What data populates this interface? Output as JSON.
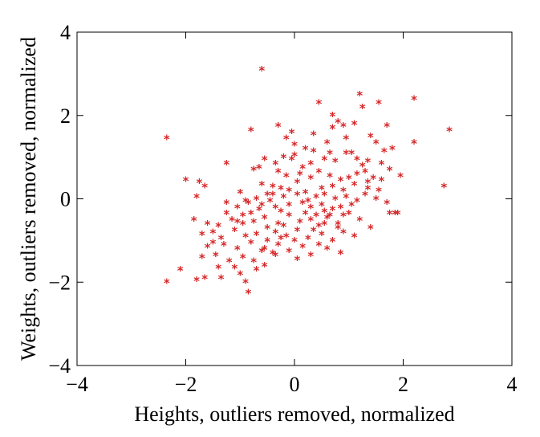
{
  "chart_data": {
    "type": "scatter",
    "title": "",
    "xlabel": "Heights, outliers removed, normalized",
    "ylabel": "Weights, outliers removed, normalized",
    "xlim": [
      -4,
      4
    ],
    "ylim": [
      -4,
      4
    ],
    "x_ticks": [
      -4,
      -2,
      0,
      2,
      4
    ],
    "y_ticks": [
      -4,
      -2,
      0,
      2,
      4
    ],
    "x_tick_labels": [
      "−4",
      "−2",
      "0",
      "2",
      "4"
    ],
    "y_tick_labels": [
      "−4",
      "−2",
      "0",
      "2",
      "4"
    ],
    "grid": false,
    "marker": "*",
    "marker_color": "#d62728",
    "series": [
      {
        "points": [
          [
            -0.6,
            3.15
          ],
          [
            1.2,
            2.55
          ],
          [
            2.2,
            2.45
          ],
          [
            1.55,
            2.35
          ],
          [
            1.25,
            2.25
          ],
          [
            0.45,
            2.35
          ],
          [
            0.7,
            2.05
          ],
          [
            0.8,
            1.9
          ],
          [
            0.7,
            1.75
          ],
          [
            0.9,
            1.8
          ],
          [
            1.1,
            1.85
          ],
          [
            1.7,
            1.8
          ],
          [
            2.85,
            1.7
          ],
          [
            -2.35,
            1.5
          ],
          [
            -0.8,
            1.7
          ],
          [
            -0.3,
            1.8
          ],
          [
            -0.05,
            1.65
          ],
          [
            0.35,
            1.6
          ],
          [
            1.4,
            1.55
          ],
          [
            1.5,
            1.4
          ],
          [
            2.2,
            1.4
          ],
          [
            -0.15,
            1.5
          ],
          [
            0.0,
            1.35
          ],
          [
            0.6,
            1.4
          ],
          [
            0.2,
            1.25
          ],
          [
            0.95,
            1.15
          ],
          [
            1.05,
            1.15
          ],
          [
            1.65,
            1.2
          ],
          [
            1.8,
            1.25
          ],
          [
            -1.25,
            0.9
          ],
          [
            -0.55,
            1.0
          ],
          [
            -0.2,
            1.05
          ],
          [
            -0.05,
            1.0
          ],
          [
            0.0,
            1.1
          ],
          [
            0.3,
            0.9
          ],
          [
            0.55,
            1.0
          ],
          [
            0.75,
            0.95
          ],
          [
            1.35,
            0.95
          ],
          [
            1.6,
            0.9
          ],
          [
            1.75,
            0.75
          ],
          [
            -0.75,
            0.75
          ],
          [
            -0.65,
            0.8
          ],
          [
            -0.3,
            0.7
          ],
          [
            0.1,
            0.65
          ],
          [
            0.45,
            0.7
          ],
          [
            0.65,
            0.6
          ],
          [
            0.85,
            0.5
          ],
          [
            1.0,
            0.55
          ],
          [
            1.15,
            0.65
          ],
          [
            1.3,
            0.7
          ],
          [
            1.45,
            0.55
          ],
          [
            1.6,
            0.5
          ],
          [
            -2.0,
            0.5
          ],
          [
            -1.75,
            0.45
          ],
          [
            -1.65,
            0.35
          ],
          [
            -0.6,
            0.4
          ],
          [
            -0.4,
            0.35
          ],
          [
            -0.25,
            0.3
          ],
          [
            0.05,
            0.45
          ],
          [
            0.3,
            0.55
          ],
          [
            0.5,
            0.3
          ],
          [
            0.7,
            0.35
          ],
          [
            0.9,
            0.25
          ],
          [
            1.1,
            0.4
          ],
          [
            1.35,
            0.3
          ],
          [
            1.55,
            0.25
          ],
          [
            1.95,
            0.6
          ],
          [
            2.75,
            0.35
          ],
          [
            -1.8,
            0.1
          ],
          [
            -1.0,
            0.2
          ],
          [
            -0.9,
            0.0
          ],
          [
            -0.7,
            0.05
          ],
          [
            -0.4,
            0.15
          ],
          [
            -0.2,
            0.1
          ],
          [
            0.05,
            0.15
          ],
          [
            0.2,
            0.2
          ],
          [
            0.4,
            0.1
          ],
          [
            0.55,
            0.15
          ],
          [
            0.75,
            0.05
          ],
          [
            0.95,
            0.1
          ],
          [
            1.15,
            0.0
          ],
          [
            1.3,
            0.15
          ],
          [
            1.75,
            -0.3
          ],
          [
            1.85,
            -0.3
          ],
          [
            -1.25,
            -0.05
          ],
          [
            -1.05,
            -0.15
          ],
          [
            -0.85,
            -0.05
          ],
          [
            -0.6,
            -0.1
          ],
          [
            -0.35,
            -0.15
          ],
          [
            -0.1,
            -0.1
          ],
          [
            0.15,
            -0.05
          ],
          [
            0.3,
            -0.15
          ],
          [
            0.5,
            -0.1
          ],
          [
            0.7,
            -0.2
          ],
          [
            0.85,
            -0.15
          ],
          [
            1.0,
            -0.3
          ],
          [
            -1.85,
            -0.45
          ],
          [
            -1.6,
            -0.55
          ],
          [
            -1.4,
            -0.6
          ],
          [
            -1.15,
            -0.45
          ],
          [
            -0.95,
            -0.35
          ],
          [
            -0.75,
            -0.5
          ],
          [
            -0.55,
            -0.4
          ],
          [
            -0.3,
            -0.55
          ],
          [
            -0.1,
            -0.35
          ],
          [
            0.1,
            -0.5
          ],
          [
            0.3,
            -0.45
          ],
          [
            0.45,
            -0.6
          ],
          [
            0.6,
            -0.4
          ],
          [
            0.8,
            -0.55
          ],
          [
            1.2,
            -0.45
          ],
          [
            1.4,
            -0.65
          ],
          [
            1.9,
            -0.3
          ],
          [
            -1.7,
            -0.8
          ],
          [
            -1.5,
            -0.75
          ],
          [
            -1.35,
            -0.9
          ],
          [
            -1.1,
            -0.7
          ],
          [
            -0.9,
            -0.85
          ],
          [
            -0.7,
            -0.8
          ],
          [
            -0.5,
            -0.95
          ],
          [
            -0.35,
            -0.75
          ],
          [
            -0.15,
            -0.85
          ],
          [
            0.05,
            -0.7
          ],
          [
            0.25,
            -0.9
          ],
          [
            0.5,
            -0.8
          ],
          [
            0.7,
            -0.95
          ],
          [
            0.9,
            -0.75
          ],
          [
            1.1,
            -0.85
          ],
          [
            -1.6,
            -1.1
          ],
          [
            -1.3,
            -1.05
          ],
          [
            -1.05,
            -1.15
          ],
          [
            -0.8,
            -1.0
          ],
          [
            -0.55,
            -1.15
          ],
          [
            -0.3,
            -1.05
          ],
          [
            -0.1,
            -1.2
          ],
          [
            0.15,
            -1.1
          ],
          [
            0.45,
            -1.05
          ],
          [
            0.6,
            -1.15
          ],
          [
            0.85,
            -1.25
          ],
          [
            -1.7,
            -1.35
          ],
          [
            -1.45,
            -1.3
          ],
          [
            -1.2,
            -1.45
          ],
          [
            -0.95,
            -1.35
          ],
          [
            -0.75,
            -1.45
          ],
          [
            -0.55,
            -1.55
          ],
          [
            -0.35,
            -1.3
          ],
          [
            0.05,
            -1.4
          ],
          [
            -1.65,
            -1.85
          ],
          [
            -1.35,
            -1.85
          ],
          [
            -1.0,
            -1.75
          ],
          [
            -0.7,
            -1.65
          ],
          [
            -2.1,
            -1.65
          ],
          [
            -2.35,
            -1.95
          ],
          [
            -1.8,
            -1.9
          ],
          [
            -0.9,
            -1.95
          ],
          [
            -0.85,
            -2.2
          ],
          [
            -1.1,
            -1.6
          ],
          [
            -0.25,
            -0.25
          ],
          [
            0.2,
            -0.3
          ],
          [
            -0.5,
            -0.65
          ],
          [
            -0.2,
            -0.6
          ],
          [
            0.35,
            -0.7
          ],
          [
            0.65,
            -0.35
          ],
          [
            -1.25,
            -0.3
          ],
          [
            -1.05,
            -0.5
          ],
          [
            -0.45,
            0.0
          ],
          [
            0.25,
            0.0
          ],
          [
            0.55,
            -0.25
          ],
          [
            1.05,
            -0.1
          ],
          [
            -0.65,
            -0.2
          ],
          [
            -0.95,
            -0.55
          ],
          [
            -0.4,
            -1.25
          ],
          [
            0.3,
            -1.3
          ],
          [
            -1.4,
            -1.6
          ],
          [
            -0.6,
            -1.2
          ],
          [
            0.0,
            -0.95
          ],
          [
            0.4,
            -0.35
          ],
          [
            0.9,
            -0.35
          ],
          [
            1.25,
            0.85
          ],
          [
            0.15,
            0.8
          ],
          [
            -0.15,
            0.6
          ],
          [
            0.65,
            1.15
          ],
          [
            1.15,
            1.0
          ],
          [
            -0.35,
            0.9
          ],
          [
            0.35,
            1.2
          ],
          [
            0.95,
            1.5
          ],
          [
            -0.5,
            0.15
          ],
          [
            -0.8,
            -0.3
          ],
          [
            -1.5,
            -1.0
          ],
          [
            -0.25,
            -0.9
          ],
          [
            0.55,
            -0.55
          ],
          [
            1.5,
            0.05
          ],
          [
            1.7,
            -0.05
          ],
          [
            -0.1,
            0.25
          ],
          [
            0.8,
            -0.65
          ],
          [
            1.35,
            0.45
          ]
        ]
      }
    ]
  }
}
